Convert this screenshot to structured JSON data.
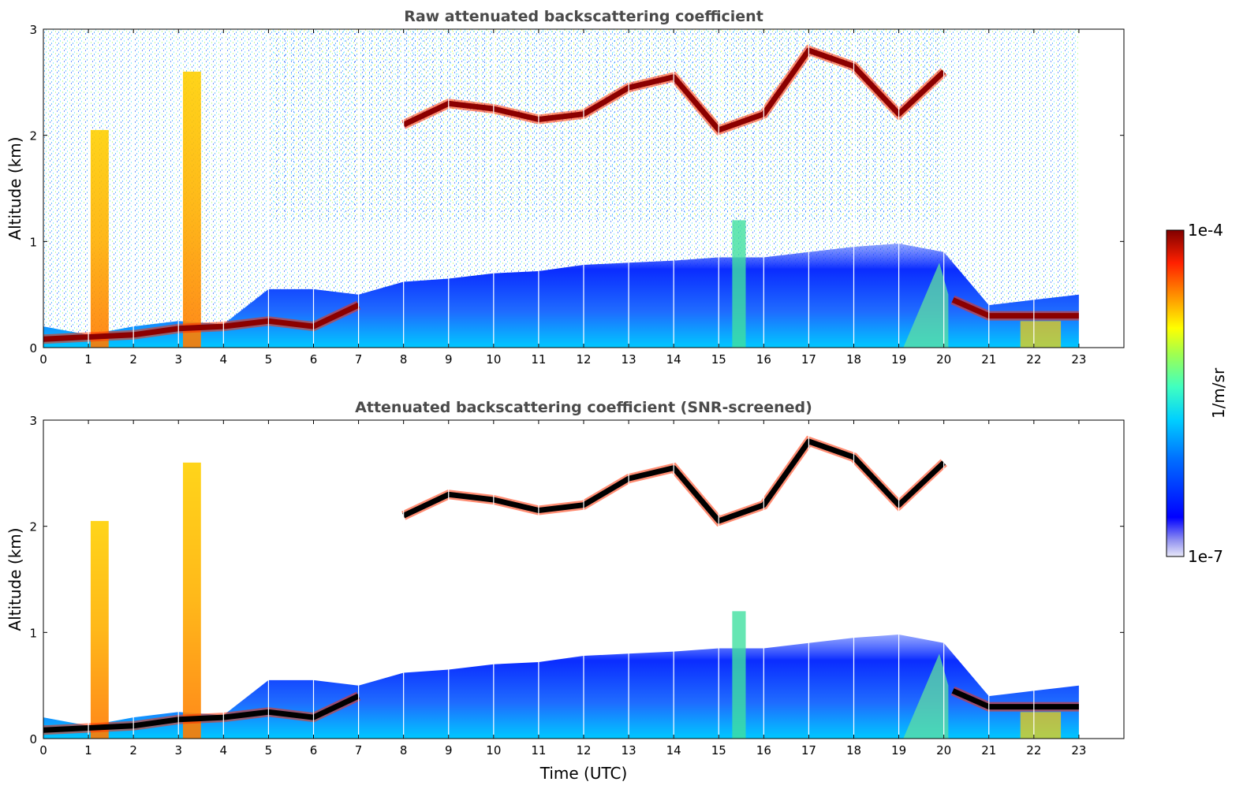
{
  "chart_data": [
    {
      "type": "heatmap",
      "title": "Raw attenuated backscattering coefficient",
      "xlabel": "",
      "ylabel": "Altitude (km)",
      "xlim": [
        0,
        24
      ],
      "ylim": [
        0,
        3
      ],
      "x_ticks": [
        "0",
        "1",
        "2",
        "3",
        "4",
        "5",
        "6",
        "7",
        "8",
        "9",
        "10",
        "11",
        "12",
        "13",
        "14",
        "15",
        "16",
        "17",
        "18",
        "19",
        "20",
        "21",
        "22",
        "23"
      ],
      "y_ticks": [
        "0",
        "1",
        "2",
        "3"
      ],
      "data_extent_x": [
        0,
        23
      ],
      "aerosol_layer_top_km": [
        [
          0,
          0.2
        ],
        [
          1,
          0.12
        ],
        [
          2,
          0.2
        ],
        [
          3,
          0.25
        ],
        [
          4,
          0.22
        ],
        [
          5,
          0.55
        ],
        [
          6,
          0.55
        ],
        [
          7,
          0.5
        ],
        [
          8,
          0.62
        ],
        [
          9,
          0.65
        ],
        [
          10,
          0.7
        ],
        [
          11,
          0.72
        ],
        [
          12,
          0.78
        ],
        [
          13,
          0.8
        ],
        [
          14,
          0.82
        ],
        [
          15,
          0.85
        ],
        [
          16,
          0.85
        ],
        [
          17,
          0.9
        ],
        [
          18,
          0.95
        ],
        [
          19,
          0.98
        ],
        [
          20,
          0.9
        ],
        [
          21,
          0.4
        ],
        [
          22,
          0.45
        ],
        [
          23,
          0.5
        ]
      ],
      "cloud_layers_km": [
        [
          0,
          0.08
        ],
        [
          2,
          0.12
        ],
        [
          3,
          0.18
        ],
        [
          4,
          0.2
        ],
        [
          5,
          0.25
        ],
        [
          6,
          0.2
        ],
        [
          7,
          0.4
        ],
        [
          8,
          2.1
        ],
        [
          9,
          2.3
        ],
        [
          10,
          2.25
        ],
        [
          11,
          2.15
        ],
        [
          12,
          2.2
        ],
        [
          13,
          2.45
        ],
        [
          14,
          2.55
        ],
        [
          15,
          2.05
        ],
        [
          16,
          2.2
        ],
        [
          17,
          2.8
        ],
        [
          18,
          2.65
        ],
        [
          19,
          2.2
        ],
        [
          20,
          2.6
        ],
        [
          20.2,
          0.45
        ],
        [
          21,
          0.3
        ],
        [
          22,
          0.3
        ],
        [
          23,
          0.3
        ]
      ]
    },
    {
      "type": "heatmap",
      "title": "Attenuated backscattering coefficient (SNR-screened)",
      "xlabel": "Time (UTC)",
      "ylabel": "Altitude (km)",
      "xlim": [
        0,
        24
      ],
      "ylim": [
        0,
        3
      ],
      "x_ticks": [
        "0",
        "1",
        "2",
        "3",
        "4",
        "5",
        "6",
        "7",
        "8",
        "9",
        "10",
        "11",
        "12",
        "13",
        "14",
        "15",
        "16",
        "17",
        "18",
        "19",
        "20",
        "21",
        "22",
        "23"
      ],
      "y_ticks": [
        "0",
        "1",
        "2",
        "3"
      ],
      "data_extent_x": [
        0,
        23
      ]
    }
  ],
  "colorbar": {
    "label": "1/m/sr",
    "max_label": "1e-4",
    "min_label": "1e-7",
    "colors": [
      "#e8e8f8",
      "#b0b0f0",
      "#0000ff",
      "#0060ff",
      "#00c0ff",
      "#40ffd0",
      "#a0ff60",
      "#ffff00",
      "#ffa000",
      "#ff4000",
      "#c00000",
      "#800000"
    ]
  }
}
